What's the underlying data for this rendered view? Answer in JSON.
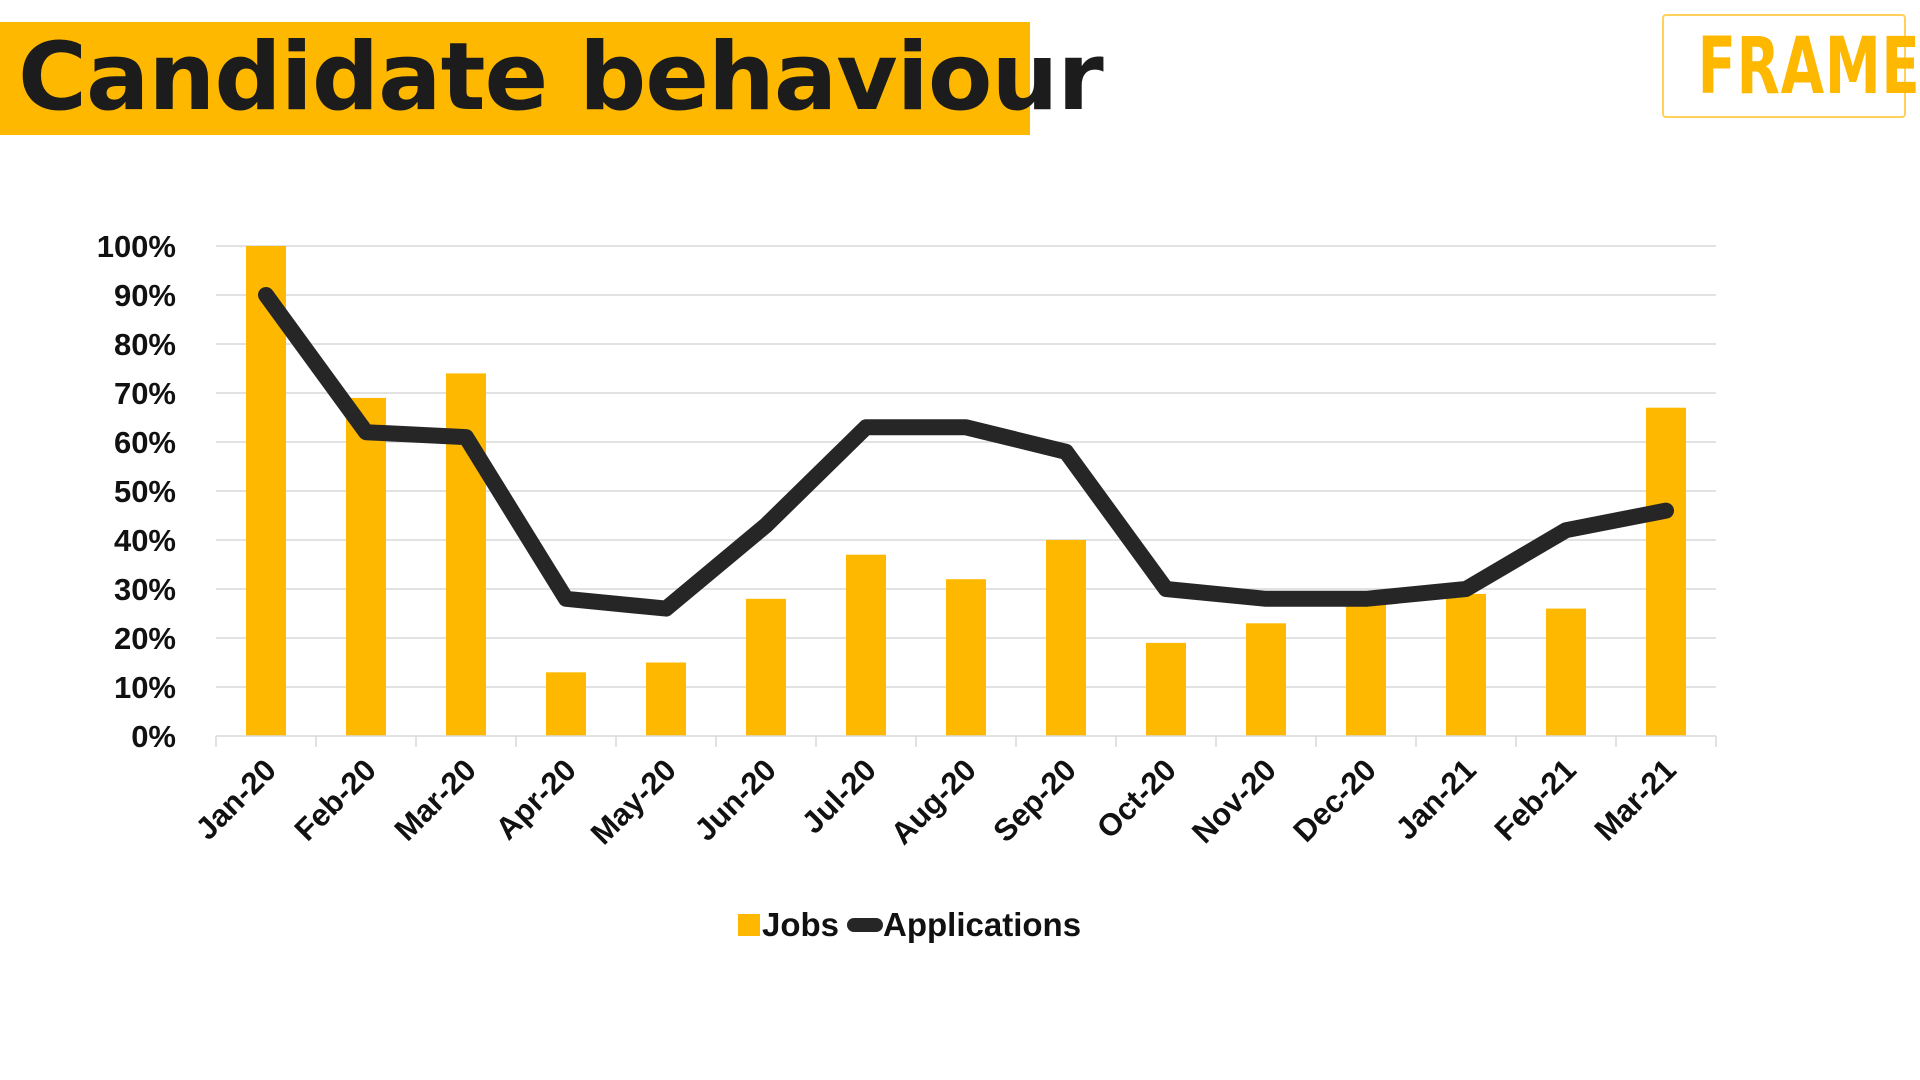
{
  "header": {
    "title": "Candidate behaviour",
    "logo_text": "FRAME"
  },
  "colors": {
    "accent": "#ffb800",
    "line": "#262626",
    "text": "#111111",
    "grid": "#d9d9d9"
  },
  "chart_data": {
    "type": "bar",
    "categories": [
      "Jan-20",
      "Feb-20",
      "Mar-20",
      "Apr-20",
      "May-20",
      "Jun-20",
      "Jul-20",
      "Aug-20",
      "Sep-20",
      "Oct-20",
      "Nov-20",
      "Dec-20",
      "Jan-21",
      "Feb-21",
      "Mar-21"
    ],
    "series": [
      {
        "name": "Jobs",
        "type": "bar",
        "values": [
          100,
          69,
          74,
          13,
          15,
          28,
          37,
          32,
          40,
          19,
          23,
          27,
          29,
          26,
          67
        ]
      },
      {
        "name": "Applications",
        "type": "line",
        "values": [
          90,
          62,
          61,
          28,
          26,
          43,
          63,
          63,
          58,
          30,
          28,
          28,
          30,
          42,
          46
        ]
      }
    ],
    "y_ticks": [
      "0%",
      "10%",
      "20%",
      "30%",
      "40%",
      "50%",
      "60%",
      "70%",
      "80%",
      "90%",
      "100%"
    ],
    "ylim": [
      0,
      100
    ],
    "y_unit": "%",
    "grid": true,
    "legend_position": "bottom"
  }
}
